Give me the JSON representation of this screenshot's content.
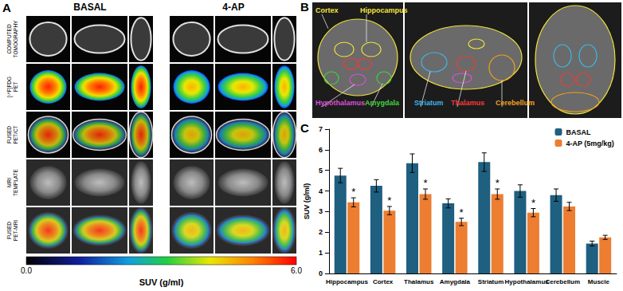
{
  "panel_a": {
    "label": "A",
    "columns": [
      "BASAL",
      "4-AP"
    ],
    "rows": [
      "COMPUTED TOMOGRAPHY",
      "[¹⁸F]FDG PET",
      "FUSED PET/CT",
      "MRI TEMPLATE",
      "FUSED PET-MRI"
    ],
    "colorbar": {
      "label": "SUV (g/ml)",
      "range": [
        0,
        6
      ],
      "ticks": [
        {
          "value": 0,
          "label": "0.0"
        },
        {
          "value": 6,
          "label": "6.0"
        }
      ]
    }
  },
  "panel_b": {
    "label": "B",
    "regions": [
      {
        "label": "Cortex",
        "color": "#f2e33a"
      },
      {
        "label": "Hippocampus",
        "color": "#f2e33a"
      },
      {
        "label": "Hypothalamus",
        "color": "#d94fd6"
      },
      {
        "label": "Amygdala",
        "color": "#3fd23f"
      },
      {
        "label": "Striatum",
        "color": "#3fb6e8"
      },
      {
        "label": "Thalamus",
        "color": "#f03a3a"
      },
      {
        "label": "Cerebellum",
        "color": "#f0a020"
      }
    ]
  },
  "panel_c": {
    "label": "C"
  },
  "chart_data": {
    "type": "bar",
    "categories": [
      "Hippocampus",
      "Cortex",
      "Thalamus",
      "Amygdala",
      "Striatum",
      "Hypothalamus",
      "Cerebellum",
      "Muscle"
    ],
    "series": [
      {
        "name": "BASAL",
        "color": "#1f5f7f",
        "values": [
          4.75,
          4.25,
          5.35,
          3.4,
          5.4,
          4.0,
          3.8,
          1.45
        ],
        "errors": [
          0.35,
          0.3,
          0.45,
          0.22,
          0.45,
          0.3,
          0.3,
          0.12
        ]
      },
      {
        "name": "4-AP (5mg/kg)",
        "color": "#ed7d31",
        "values": [
          3.45,
          3.05,
          3.85,
          2.5,
          3.85,
          2.95,
          3.25,
          1.75
        ],
        "errors": [
          0.22,
          0.2,
          0.25,
          0.18,
          0.25,
          0.2,
          0.2,
          0.1
        ],
        "annotations": [
          "*",
          "*",
          "*",
          "*",
          "*",
          "*",
          null,
          null
        ]
      }
    ],
    "ylabel": "SUV (g/ml)",
    "ylim": [
      0,
      7
    ],
    "yticks": [
      0,
      1,
      2,
      3,
      4,
      5,
      6,
      7
    ],
    "grid": false,
    "legend": "top-right"
  }
}
